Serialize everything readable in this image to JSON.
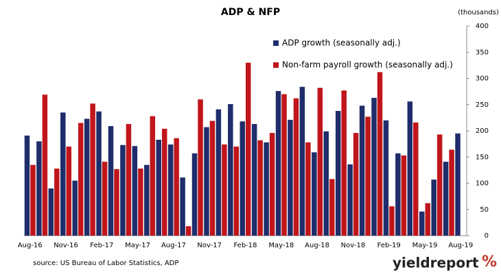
{
  "chart_data": {
    "type": "bar",
    "title": "ADP & NFP",
    "y_axis_label": "(thousands)",
    "source": "source: US Bureau of Labor Statistics, ADP",
    "logo_text": "yieldreport",
    "logo_symbol": "%",
    "categories": [
      "Aug-16",
      null,
      null,
      "Nov-16",
      null,
      null,
      "Feb-17",
      null,
      null,
      "May-17",
      null,
      null,
      "Aug-17",
      null,
      null,
      "Nov-17",
      null,
      null,
      "Feb-18",
      null,
      null,
      "May-18",
      null,
      null,
      "Aug-18",
      null,
      null,
      "Nov-18",
      null,
      null,
      "Feb-19",
      null,
      null,
      "May-19",
      null,
      null,
      "Aug-19"
    ],
    "series": [
      {
        "name": "ADP growth (seasonally adj.)",
        "color": "#1f2d6b",
        "values": [
          191,
          180,
          90,
          235,
          105,
          223,
          237,
          209,
          173,
          171,
          135,
          183,
          174,
          111,
          157,
          207,
          241,
          251,
          218,
          213,
          178,
          276,
          221,
          284,
          159,
          199,
          238,
          136,
          248,
          263,
          220,
          157,
          256,
          46,
          107,
          141,
          195
        ]
      },
      {
        "name": "Non-farm payroll growth (seasonally adj.)",
        "color": "#c0161b",
        "values": [
          135,
          269,
          128,
          170,
          215,
          252,
          141,
          127,
          213,
          128,
          228,
          204,
          186,
          18,
          260,
          219,
          174,
          170,
          330,
          182,
          196,
          270,
          262,
          178,
          282,
          108,
          277,
          196,
          227,
          312,
          56,
          153,
          216,
          62,
          193,
          164,
          null
        ]
      }
    ],
    "ylim": [
      0,
      400
    ],
    "yticks": [
      0,
      50,
      100,
      150,
      200,
      250,
      300,
      350,
      400
    ],
    "grid": false
  }
}
